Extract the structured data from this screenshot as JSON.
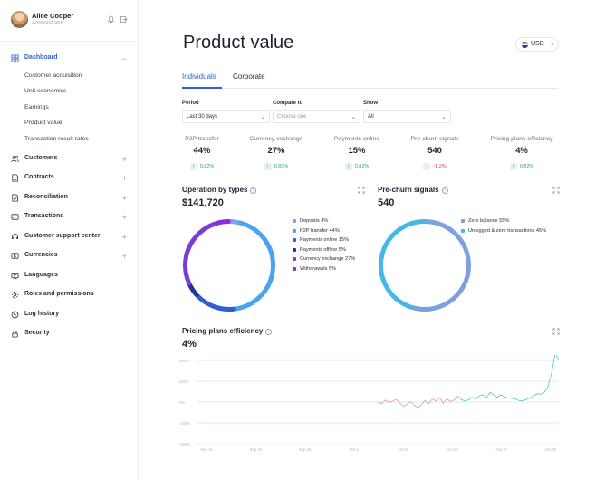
{
  "user": {
    "name": "Alice Cooper",
    "role": "Administrator"
  },
  "nav": {
    "dashboard": {
      "label": "Dashboard",
      "toggle": "−"
    },
    "sub_items": [
      "Customer acquisition",
      "Unit economics",
      "Earnings",
      "Product value",
      "Transaction result rates"
    ],
    "items": [
      {
        "label": "Customers",
        "toggle": "+"
      },
      {
        "label": "Contracts",
        "toggle": "+"
      },
      {
        "label": "Reconciliation",
        "toggle": "+"
      },
      {
        "label": "Transactions",
        "toggle": "+"
      },
      {
        "label": "Customer support center",
        "toggle": "+"
      },
      {
        "label": "Currencies",
        "toggle": "+"
      },
      {
        "label": "Languages",
        "toggle": ""
      },
      {
        "label": "Roles and permissions",
        "toggle": ""
      },
      {
        "label": "Log history",
        "toggle": ""
      },
      {
        "label": "Security",
        "toggle": ""
      }
    ]
  },
  "page": {
    "title": "Product value",
    "currency": "USD"
  },
  "tabs": [
    "Individuals",
    "Corporate"
  ],
  "filters": {
    "period": {
      "label": "Period",
      "value": "Last 30 days"
    },
    "compare": {
      "label": "Compare to",
      "placeholder": "Choose one"
    },
    "show": {
      "label": "Show",
      "value": "All"
    }
  },
  "kpis": [
    {
      "label": "P2P transfer",
      "value": "44%",
      "change": "0.82%",
      "direction": "up"
    },
    {
      "label": "Currency exchange",
      "value": "27%",
      "change": "0.82%",
      "direction": "up"
    },
    {
      "label": "Payments online",
      "value": "15%",
      "change": "0.82%",
      "direction": "up"
    },
    {
      "label": "Pre-churn signals",
      "value": "540",
      "change": "-1.2%",
      "direction": "down"
    },
    {
      "label": "Pricing plans efficiency",
      "value": "4%",
      "change": "0.82%",
      "direction": "up"
    }
  ],
  "operation_card": {
    "title": "Operation by types",
    "total": "$141,720"
  },
  "prechurn_card": {
    "title": "Pre-churn signals",
    "total": "540"
  },
  "pricing_card": {
    "title": "Pricing plans efficiency",
    "total": "4%"
  },
  "colors": {
    "accent": "#2f5fd0",
    "positive": "#2ba37a",
    "negative": "#d14343"
  },
  "chart_data": [
    {
      "type": "pie",
      "title": "Operation by types",
      "categories": [
        "Deposits",
        "P2P transfer",
        "Payments online",
        "Payments offline",
        "Currency exchange",
        "Withdrawals"
      ],
      "values": [
        4,
        44,
        15,
        5,
        27,
        5
      ],
      "labels": [
        "Deposits 4%",
        "P2P transfer 44%",
        "Payments online 15%",
        "Payments offline 5%",
        "Currency exchange 27%",
        "Withdrawals 5%"
      ],
      "colors": [
        "#7ea3e8",
        "#4aa3f0",
        "#2f5fd0",
        "#23378f",
        "#7a3bd8",
        "#8b2fd9"
      ],
      "style": "ring"
    },
    {
      "type": "pie",
      "title": "Pre-churn signals",
      "categories": [
        "Zero balance",
        "Unlogged & zero transactions"
      ],
      "values": [
        55,
        45
      ],
      "labels": [
        "Zero balance 55%",
        "Unlogged & zero transactions 45%"
      ],
      "colors": [
        "#7e9fe0",
        "#45b8e8"
      ],
      "style": "ring"
    },
    {
      "type": "line",
      "title": "Pricing plans efficiency",
      "y_ticks": [
        "400%",
        "200%",
        "0%",
        "-200%",
        "-400%"
      ],
      "ylim": [
        -400,
        400
      ],
      "x_ticks": [
        "Sep 16",
        "Sep 19",
        "Sep 30",
        "Oct 1",
        "Oct 6",
        "Oct 10",
        "Oct 15",
        "Oct 20"
      ],
      "series": [
        {
          "color": "#e8879a",
          "x": [
            0.0,
            0.02,
            0.04,
            0.06,
            0.08,
            0.1,
            0.12,
            0.14,
            0.16,
            0.18,
            0.2,
            0.22,
            0.24,
            0.26,
            0.28,
            0.3,
            0.32,
            0.34,
            0.36,
            0.38,
            0.4,
            0.42
          ],
          "values": [
            0,
            -15,
            20,
            -5,
            10,
            25,
            -10,
            -40,
            -20,
            5,
            -30,
            -55,
            -25,
            15,
            -15,
            30,
            10,
            40,
            -10,
            30,
            5,
            20
          ]
        },
        {
          "color": "#3ec2b5",
          "x": [
            0.42,
            0.44,
            0.46,
            0.48,
            0.5,
            0.52,
            0.54,
            0.56,
            0.58,
            0.6,
            0.62,
            0.64,
            0.66,
            0.68,
            0.7,
            0.72,
            0.74,
            0.76,
            0.78,
            0.8,
            0.82,
            0.84,
            0.86,
            0.88,
            0.9,
            0.92,
            0.94,
            0.96,
            0.98,
            1.0
          ],
          "values": [
            20,
            55,
            25,
            10,
            20,
            45,
            30,
            60,
            70,
            40,
            95,
            65,
            45,
            70,
            50,
            40,
            35,
            30,
            15,
            10,
            25,
            40,
            60,
            80,
            75,
            95,
            150,
            280,
            470,
            400
          ]
        }
      ]
    }
  ]
}
